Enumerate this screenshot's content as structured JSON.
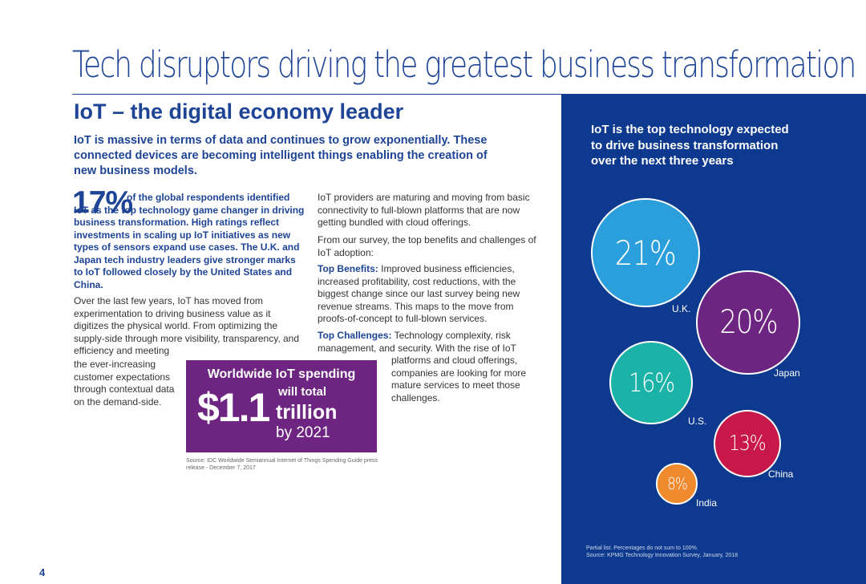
{
  "page": {
    "title": "Tech disruptors driving the greatest business transformation",
    "page_number": "4"
  },
  "section": {
    "title": "IoT – the digital economy leader",
    "intro": "IoT is massive in terms of data and continues to grow exponentially. These connected devices are becoming intelligent things enabling the creation of new business models."
  },
  "stat": {
    "value": "17%",
    "text": "of the global respondents identified IoT as the top technology game changer in driving business transformation. High ratings reflect investments in scaling up IoT initiatives as new types of sensors expand use cases. The U.K. and Japan tech industry leaders give stronger marks to IoT followed closely by the United States and China."
  },
  "body": {
    "left_p1": "Over the last few years, IoT has moved from experimentation to driving business value as it digitizes the physical world. From optimizing the supply-side through more visibility, transparency, and efficiency and meeting",
    "left_p2": "the ever-increasing customer expectations through contextual data on the demand-side.",
    "right_p1": "IoT providers are maturing and moving from basic connectivity to full-blown platforms that are now getting bundled with cloud offerings.",
    "right_p2": "From our survey, the top benefits and challenges of IoT adoption:",
    "benefits_label": "Top Benefits:",
    "benefits_text": "Improved business efficiencies, increased profitability, cost reductions, with the biggest change since our last survey being new revenue streams. This maps to the move from proofs-of-concept to full-blown services.",
    "challenges_label": "Top Challenges:",
    "challenges_text": "Technology complexity, risk management, and security. With the rise of IoT",
    "challenges_cont": "platforms and cloud offerings, companies are looking for more mature services to meet those challenges."
  },
  "spending": {
    "title": "Worldwide IoT spending",
    "amount": "$1.1",
    "will_total": "will total",
    "unit": "trillion",
    "by": "by 2021",
    "source": "Source: IDC Worldwide Semiannual Internet of Things Spending Guide press release - December 7, 2017"
  },
  "panel": {
    "title": "IoT is the top technology expected to drive business transformation over the next three years",
    "note": "Partial list. Percentages do not sum to 100%.",
    "source": "Source: KPMG Technology Innovation Survey, January, 2018"
  },
  "chart_data": {
    "type": "bubble",
    "categories": [
      "U.K.",
      "Japan",
      "U.S.",
      "China",
      "India"
    ],
    "values": [
      21,
      20,
      16,
      13,
      8
    ],
    "labels": [
      "21%",
      "20%",
      "16%",
      "13%",
      "8%"
    ],
    "colors": [
      "#2a9fdb",
      "#6e2581",
      "#1bb3a8",
      "#c8174b",
      "#ef8a2f"
    ]
  }
}
